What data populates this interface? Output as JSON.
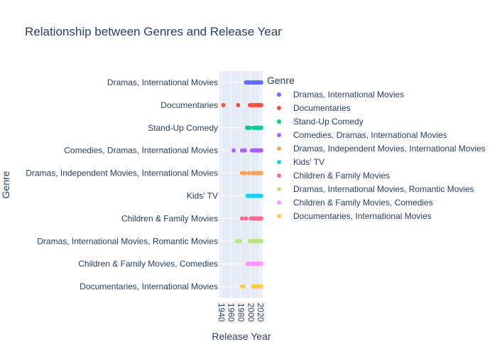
{
  "chart_data": {
    "type": "scatter",
    "title": "Relationship between Genres and Release Year",
    "xlabel": "Release Year",
    "ylabel": "Genre",
    "xlim": [
      1936,
      2024
    ],
    "x_ticks": [
      1940,
      1960,
      1980,
      2000,
      2020
    ],
    "grid": true,
    "legend_title": "Genre",
    "legend_position": "right",
    "plot_background": "#e5ecf6",
    "categories": [
      "Dramas, International Movies",
      "Documentaries",
      "Stand-Up Comedy",
      "Comedies, Dramas, International Movies",
      "Dramas, Independent Movies, International Movies",
      "Kids' TV",
      "Children & Family Movies",
      "Dramas, International Movies, Romantic Movies",
      "Children & Family Movies, Comedies",
      "Documentaries, International Movies"
    ],
    "series": [
      {
        "name": "Dramas, International Movies",
        "color": "#636efa",
        "x": [
          1990,
          1992,
          1994,
          1996,
          1998,
          2000,
          2002,
          2004,
          2006,
          2008,
          2010,
          2012,
          2014,
          2015,
          2016,
          2017,
          2018,
          2019,
          2020,
          2021
        ]
      },
      {
        "name": "Documentaries",
        "color": "#ef553b",
        "x": [
          1944,
          1974,
          1998,
          2000,
          2002,
          2004,
          2006,
          2008,
          2010,
          2012,
          2014,
          2015,
          2016,
          2017,
          2018,
          2019,
          2020,
          2021
        ]
      },
      {
        "name": "Stand-Up Comedy",
        "color": "#00cc96",
        "x": [
          1992,
          1994,
          1996,
          1998,
          2006,
          2008,
          2010,
          2012,
          2013,
          2014,
          2015,
          2016,
          2017,
          2018,
          2019,
          2020,
          2021
        ]
      },
      {
        "name": "Comedies, Dramas, International Movies",
        "color": "#ab63fa",
        "x": [
          1965,
          1982,
          1985,
          1988,
          2002,
          2004,
          2006,
          2008,
          2010,
          2012,
          2013,
          2014,
          2015,
          2016,
          2017,
          2018,
          2019,
          2020,
          2021
        ]
      },
      {
        "name": "Dramas, Independent Movies, International Movies",
        "color": "#ffa15a",
        "x": [
          1982,
          1985,
          1988,
          1996,
          2004,
          2006,
          2008,
          2010,
          2012,
          2013,
          2014,
          2015,
          2016,
          2017,
          2018,
          2019,
          2020,
          2021
        ]
      },
      {
        "name": "Kids' TV",
        "color": "#19d3f3",
        "x": [
          1993,
          1995,
          1997,
          1999,
          2001,
          2003,
          2005,
          2007,
          2009,
          2011,
          2012,
          2013,
          2014,
          2015,
          2016,
          2017,
          2018,
          2019,
          2020,
          2021
        ]
      },
      {
        "name": "Children & Family Movies",
        "color": "#ff6692",
        "x": [
          1982,
          1990,
          2000,
          2002,
          2004,
          2006,
          2008,
          2010,
          2012,
          2013,
          2014,
          2015,
          2016,
          2017,
          2018,
          2019,
          2020,
          2021
        ]
      },
      {
        "name": "Dramas, International Movies, Romantic Movies",
        "color": "#b6e880",
        "x": [
          1972,
          1975,
          1978,
          1998,
          2000,
          2002,
          2004,
          2006,
          2008,
          2010,
          2012,
          2013,
          2014,
          2015,
          2016,
          2017,
          2018,
          2019,
          2020,
          2021
        ]
      },
      {
        "name": "Children & Family Movies, Comedies",
        "color": "#ff97ff",
        "x": [
          1993,
          1996,
          1998,
          2000,
          2002,
          2004,
          2006,
          2008,
          2010,
          2012,
          2013,
          2014,
          2015,
          2016,
          2017,
          2018,
          2019,
          2020,
          2021
        ]
      },
      {
        "name": "Documentaries, International Movies",
        "color": "#fecb52",
        "x": [
          1982,
          1985,
          2004,
          2006,
          2008,
          2010,
          2012,
          2013,
          2014,
          2015,
          2016,
          2017,
          2018,
          2019,
          2020,
          2021
        ]
      }
    ]
  }
}
